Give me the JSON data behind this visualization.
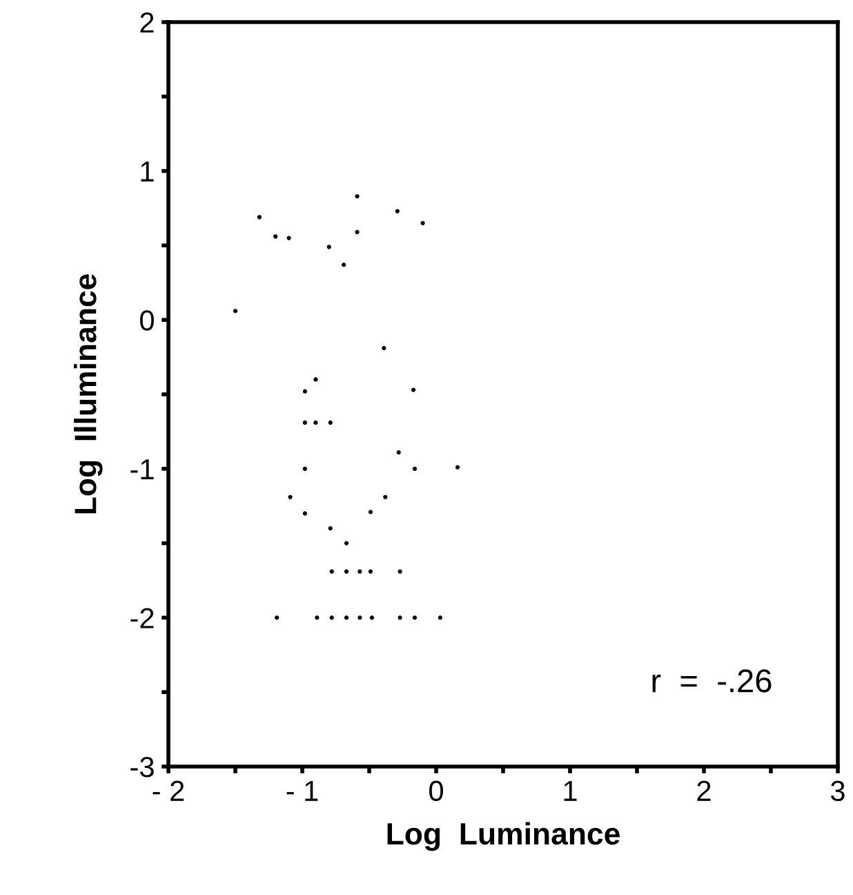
{
  "chart_data": {
    "type": "scatter",
    "xlabel": "Log  Luminance",
    "ylabel": "Log  Illuminance",
    "x": [
      -0.59,
      -1.32,
      -0.29,
      -0.1,
      -1.2,
      -1.1,
      -0.59,
      -0.8,
      -0.69,
      -1.5,
      -0.39,
      -0.9,
      -0.98,
      -0.17,
      -0.98,
      -0.9,
      -0.79,
      -0.28,
      -0.98,
      -0.16,
      0.16,
      -1.09,
      -0.38,
      -0.98,
      -0.49,
      -0.79,
      -0.67,
      -0.78,
      -0.67,
      -0.57,
      -0.49,
      -0.27,
      -1.19,
      -0.89,
      -0.78,
      -0.67,
      -0.57,
      -0.48,
      -0.27,
      -0.16,
      0.03
    ],
    "values": [
      0.83,
      0.69,
      0.73,
      0.65,
      0.56,
      0.55,
      0.59,
      0.49,
      0.37,
      0.06,
      -0.19,
      -0.4,
      -0.48,
      -0.47,
      -0.69,
      -0.69,
      -0.69,
      -0.89,
      -1.0,
      -1.0,
      -0.99,
      -1.19,
      -1.19,
      -1.3,
      -1.29,
      -1.4,
      -1.5,
      -1.69,
      -1.69,
      -1.69,
      -1.69,
      -1.69,
      -2.0,
      -2.0,
      -2.0,
      -2.0,
      -2.0,
      -2.0,
      -2.0,
      -2.0,
      -2.0
    ],
    "color": "#000000",
    "marker": "circle",
    "grid": false,
    "legend": false,
    "xlim": [
      -2,
      3
    ],
    "ylim": [
      -3,
      2
    ],
    "xticks": [
      {
        "value": -2,
        "label": "- 2"
      },
      {
        "value": -1.5,
        "label": null
      },
      {
        "value": -1,
        "label": "- 1"
      },
      {
        "value": -0.5,
        "label": null
      },
      0,
      {
        "value": 0.5,
        "label": null
      },
      1,
      {
        "value": 1.5,
        "label": null
      },
      2,
      {
        "value": 2.5,
        "label": null
      },
      3
    ],
    "yticks": [
      {
        "value": -3,
        "label": "-3"
      },
      {
        "value": -2.5,
        "label": null
      },
      {
        "value": -2,
        "label": "-2"
      },
      {
        "value": -1.5,
        "label": null
      },
      {
        "value": -1,
        "label": "-1"
      },
      {
        "value": -0.5,
        "label": null
      },
      0,
      {
        "value": 0.5,
        "label": null
      },
      1,
      {
        "value": 1.5,
        "label": null
      },
      2
    ],
    "annotations": [
      "r  =  -.26"
    ]
  }
}
